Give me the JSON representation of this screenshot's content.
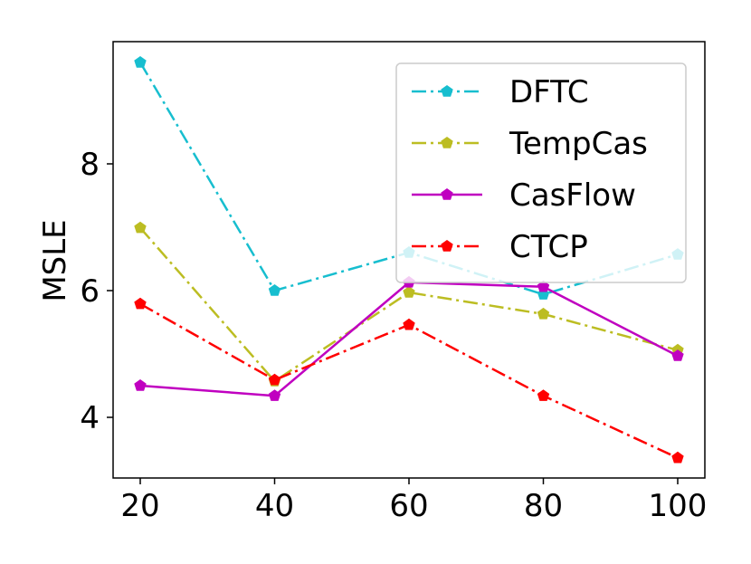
{
  "chart_data": {
    "type": "line",
    "title": "",
    "xlabel": "",
    "ylabel": "MSLE",
    "x": [
      20,
      40,
      60,
      80,
      100
    ],
    "xticks": [
      "20",
      "40",
      "60",
      "80",
      "100"
    ],
    "yticks": [
      "4",
      "6",
      "8"
    ],
    "ytick_values": [
      4,
      6,
      8
    ],
    "xlim": [
      16,
      104
    ],
    "ylim": [
      3.1,
      9.9
    ],
    "grid": false,
    "legend_position": "top-right",
    "series": [
      {
        "name": "DFTC",
        "color": "#17becf",
        "line_style": "dashdot",
        "marker": "pentagon",
        "values": [
          9.6,
          6.0,
          6.6,
          5.94,
          6.57
        ]
      },
      {
        "name": "TempCas",
        "color": "#bcbd22",
        "line_style": "dashdot",
        "marker": "pentagon",
        "values": [
          6.99,
          4.57,
          5.97,
          5.63,
          5.06
        ]
      },
      {
        "name": "CasFlow",
        "color": "#c000c0",
        "line_style": "solid",
        "marker": "pentagon",
        "values": [
          4.5,
          4.34,
          6.13,
          6.06,
          4.97
        ]
      },
      {
        "name": "CTCP",
        "color": "#ff0000",
        "line_style": "dashdot",
        "marker": "pentagon",
        "values": [
          5.79,
          4.59,
          5.46,
          4.34,
          3.36
        ]
      }
    ]
  }
}
